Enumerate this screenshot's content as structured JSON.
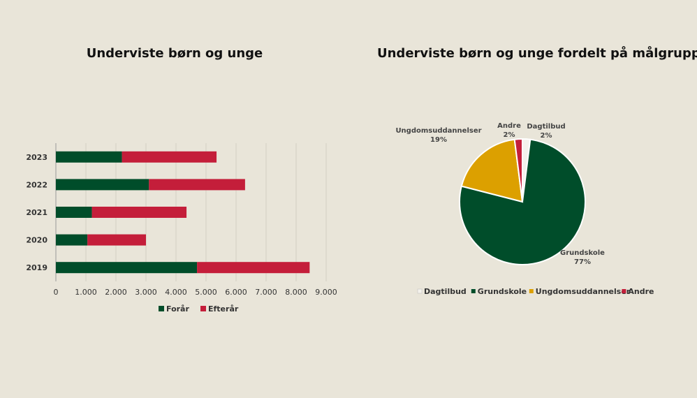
{
  "chart_data": [
    {
      "type": "bar",
      "orientation": "horizontal",
      "stacked": true,
      "title": "Underviste børn og unge",
      "categories": [
        "2023",
        "2022",
        "2021",
        "2020",
        "2019"
      ],
      "series": [
        {
          "name": "Forår",
          "color": "#004d2a",
          "values": [
            2200,
            3100,
            1200,
            1050,
            4700
          ]
        },
        {
          "name": "Efterår",
          "color": "#c41e3a",
          "values": [
            3150,
            3200,
            3150,
            1950,
            3750
          ]
        }
      ],
      "xlim": [
        0,
        9000
      ],
      "xticks": [
        "0",
        "1.000",
        "2.000",
        "3.000",
        "4.000",
        "5.000",
        "6.000",
        "7.000",
        "8.000",
        "9.000"
      ],
      "grid": true,
      "legend": "bottom"
    },
    {
      "type": "pie",
      "title": "Underviste børn og unge fordelt på målgrupper",
      "slices": [
        {
          "name": "Dagtilbud",
          "value": 2,
          "label": "2%",
          "color": "#f4f2ec"
        },
        {
          "name": "Grundskole",
          "value": 77,
          "label": "77%",
          "color": "#004d2a"
        },
        {
          "name": "Ungdomsuddannelser",
          "value": 19,
          "label": "19%",
          "color": "#dca000"
        },
        {
          "name": "Andre",
          "value": 2,
          "label": "2%",
          "color": "#c41e3a"
        }
      ],
      "legend": "bottom"
    }
  ]
}
